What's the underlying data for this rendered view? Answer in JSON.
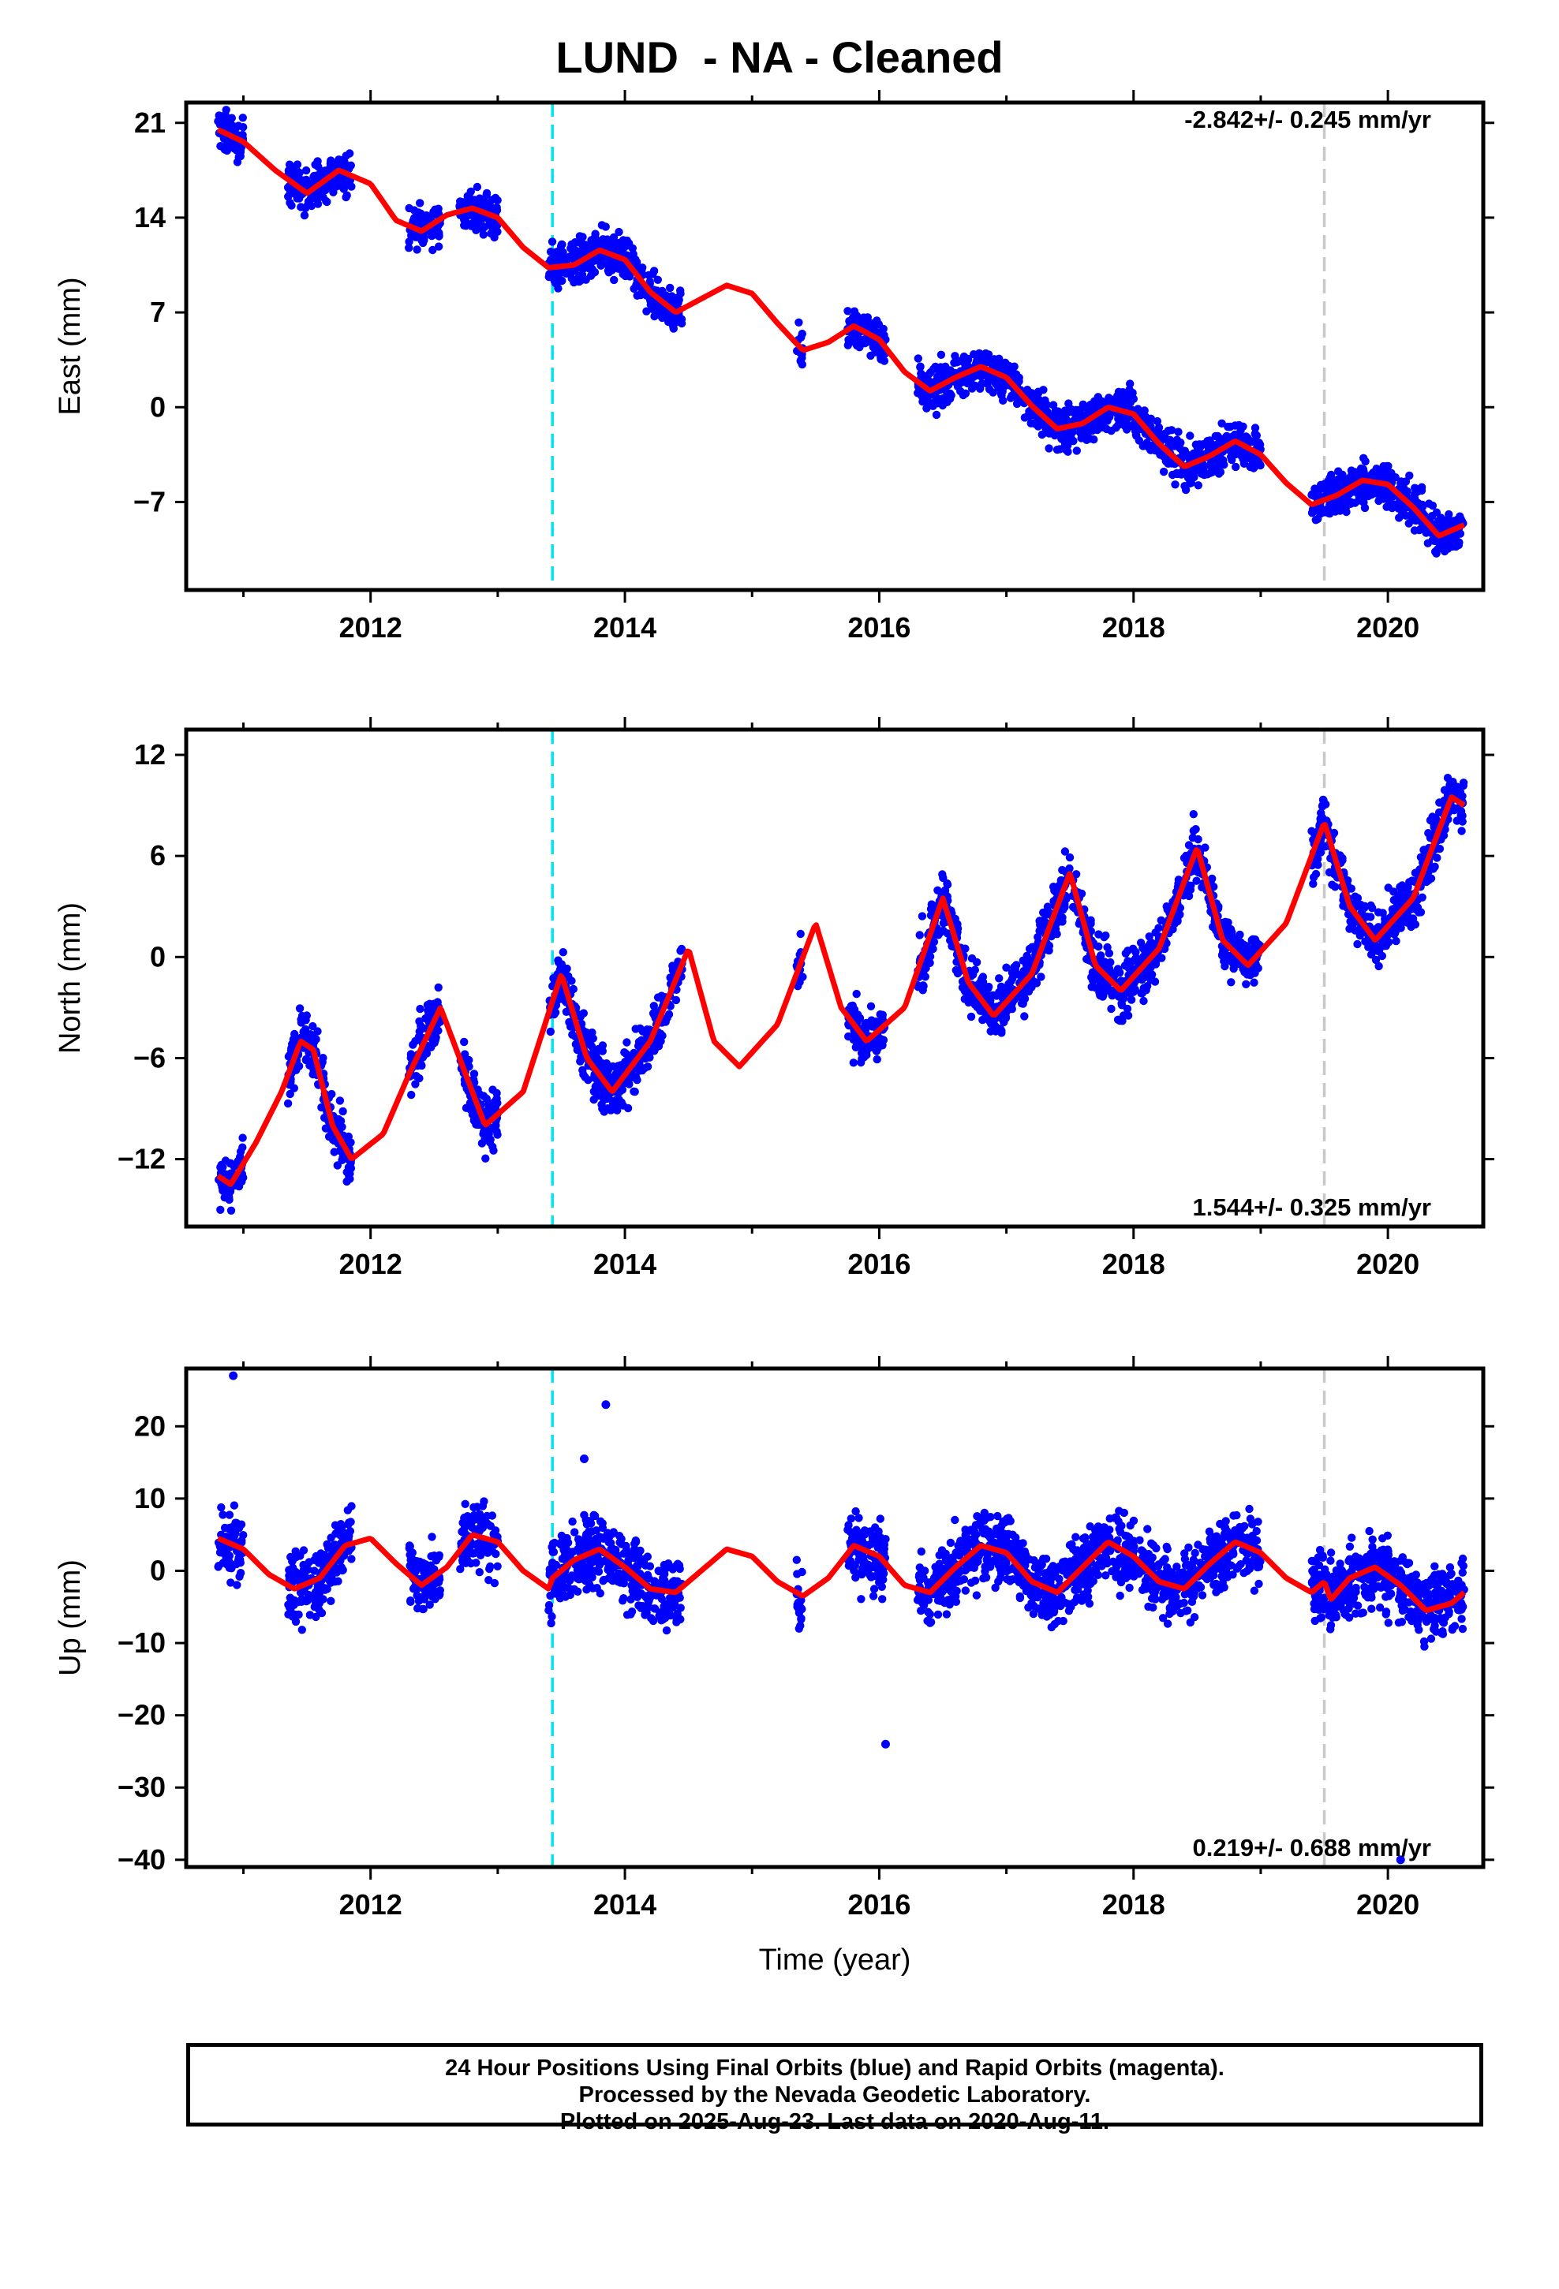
{
  "title": "LUND  - NA - Cleaned",
  "footer": {
    "line1": "24 Hour Positions Using Final Orbits (blue) and Rapid Orbits (magenta).",
    "line2": "Processed by the Nevada Geodetic Laboratory.",
    "line3": "Plotted on 2025-Aug-23. Last data on 2020-Aug-11."
  },
  "colors": {
    "final_orbit_points": "#0000ff",
    "rapid_orbit_points": "#ff00ff",
    "model_fit": "#ff0000",
    "equipment_change_line": "#00e5ee",
    "event_line": "#c8c8c8",
    "frame": "#000000"
  },
  "chart_data": [
    {
      "type": "scatter",
      "component": "East",
      "ylabel": "East (mm)",
      "xlabel": "",
      "xlim": [
        2010.55,
        2020.75
      ],
      "ylim": [
        -13.5,
        22.5
      ],
      "y_ticks": [
        -7,
        0,
        7,
        14,
        21
      ],
      "x_ticks": [
        2012,
        2014,
        2016,
        2018,
        2020
      ],
      "rate_text": "-2.842+/- 0.245 mm/yr",
      "rate_position": "top-right",
      "vertical_lines": [
        {
          "x": 2013.43,
          "style": "dashed",
          "color": "cyan"
        },
        {
          "x": 2019.5,
          "style": "dashed",
          "color": "gray"
        }
      ],
      "series": [
        {
          "role": "daily positions",
          "segments": [
            [
              2010.8,
              2011.0
            ],
            [
              2011.35,
              2011.85
            ],
            [
              2012.3,
              2012.55
            ],
            [
              2012.7,
              2013.0
            ],
            [
              2013.4,
              2014.45
            ],
            [
              2015.35,
              2015.4
            ],
            [
              2015.75,
              2016.05
            ],
            [
              2016.3,
              2016.95
            ],
            [
              2016.95,
              2019.0
            ],
            [
              2019.4,
              2020.6
            ]
          ]
        },
        {
          "role": "model fit",
          "x": [
            2010.8,
            2011.0,
            2011.25,
            2011.5,
            2011.75,
            2012.0,
            2012.2,
            2012.4,
            2012.6,
            2012.8,
            2013.0,
            2013.2,
            2013.4,
            2013.6,
            2013.8,
            2014.0,
            2014.2,
            2014.4,
            2014.6,
            2014.8,
            2015.0,
            2015.2,
            2015.4,
            2015.6,
            2015.8,
            2016.0,
            2016.2,
            2016.4,
            2016.6,
            2016.8,
            2017.0,
            2017.2,
            2017.4,
            2017.6,
            2017.8,
            2018.0,
            2018.2,
            2018.4,
            2018.6,
            2018.8,
            2019.0,
            2019.2,
            2019.4,
            2019.6,
            2019.8,
            2020.0,
            2020.2,
            2020.4,
            2020.6
          ],
          "y": [
            20.5,
            19.6,
            17.5,
            15.8,
            17.5,
            16.5,
            13.8,
            13.0,
            14.2,
            14.7,
            14.0,
            11.8,
            10.3,
            10.5,
            11.6,
            10.9,
            8.5,
            7.0,
            8.0,
            9.0,
            8.4,
            6.2,
            4.2,
            4.8,
            6.0,
            5.0,
            2.6,
            1.2,
            2.2,
            3.0,
            2.2,
            0.1,
            -1.6,
            -1.2,
            0.0,
            -0.5,
            -2.7,
            -4.4,
            -3.6,
            -2.5,
            -3.5,
            -5.6,
            -7.2,
            -6.5,
            -5.4,
            -5.7,
            -7.4,
            -9.5,
            -8.7
          ]
        }
      ]
    },
    {
      "type": "scatter",
      "component": "North",
      "ylabel": "North (mm)",
      "xlabel": "",
      "xlim": [
        2010.55,
        2020.75
      ],
      "ylim": [
        -16,
        13.5
      ],
      "y_ticks": [
        -12,
        -6,
        0,
        6,
        12
      ],
      "x_ticks": [
        2012,
        2014,
        2016,
        2018,
        2020
      ],
      "rate_text": "1.544+/- 0.325 mm/yr",
      "rate_position": "bottom-right",
      "vertical_lines": [
        {
          "x": 2013.43,
          "style": "dashed",
          "color": "cyan"
        },
        {
          "x": 2019.5,
          "style": "dashed",
          "color": "gray"
        }
      ],
      "series": [
        {
          "role": "daily positions",
          "segments": [
            [
              2010.8,
              2011.0
            ],
            [
              2011.35,
              2011.85
            ],
            [
              2012.3,
              2012.55
            ],
            [
              2012.7,
              2013.0
            ],
            [
              2013.4,
              2014.45
            ],
            [
              2015.35,
              2015.4
            ],
            [
              2015.75,
              2016.05
            ],
            [
              2016.3,
              2016.95
            ],
            [
              2016.95,
              2019.0
            ],
            [
              2019.4,
              2020.6
            ]
          ]
        },
        {
          "role": "model fit",
          "x": [
            2010.8,
            2010.9,
            2011.1,
            2011.3,
            2011.45,
            2011.55,
            2011.7,
            2011.85,
            2012.1,
            2012.3,
            2012.55,
            2012.75,
            2012.9,
            2013.2,
            2013.5,
            2013.7,
            2013.9,
            2014.2,
            2014.5,
            2014.7,
            2014.9,
            2015.2,
            2015.5,
            2015.7,
            2015.9,
            2016.2,
            2016.5,
            2016.7,
            2016.9,
            2017.2,
            2017.5,
            2017.7,
            2017.9,
            2018.2,
            2018.5,
            2018.7,
            2018.9,
            2019.2,
            2019.5,
            2019.7,
            2019.9,
            2020.2,
            2020.5,
            2020.6
          ],
          "y": [
            -13.0,
            -13.5,
            -11.0,
            -8.0,
            -5.0,
            -5.5,
            -10.0,
            -12.0,
            -10.5,
            -7.0,
            -3.0,
            -7.0,
            -10.0,
            -8.0,
            -1.0,
            -6.0,
            -8.0,
            -5.0,
            0.5,
            -5.0,
            -6.5,
            -4.0,
            2.0,
            -3.0,
            -5.0,
            -3.0,
            3.5,
            -1.5,
            -3.5,
            -1.0,
            5.0,
            -0.5,
            -2.0,
            0.5,
            6.5,
            1.0,
            -0.5,
            2.0,
            8.0,
            3.0,
            1.0,
            3.5,
            9.5,
            9.0
          ]
        }
      ]
    },
    {
      "type": "scatter",
      "component": "Up",
      "ylabel": "Up (mm)",
      "xlabel": "Time (year)",
      "xlim": [
        2010.55,
        2020.75
      ],
      "ylim": [
        -41,
        28
      ],
      "y_ticks": [
        -40,
        -30,
        -20,
        -10,
        0,
        10,
        20
      ],
      "x_ticks": [
        2012,
        2014,
        2016,
        2018,
        2020
      ],
      "rate_text": "0.219+/- 0.688 mm/yr",
      "rate_position": "bottom-right",
      "vertical_lines": [
        {
          "x": 2013.43,
          "style": "dashed",
          "color": "cyan"
        },
        {
          "x": 2019.5,
          "style": "dashed",
          "color": "gray"
        }
      ],
      "series": [
        {
          "role": "daily positions",
          "segments": [
            [
              2010.8,
              2011.0
            ],
            [
              2011.35,
              2011.85
            ],
            [
              2012.3,
              2012.55
            ],
            [
              2012.7,
              2013.0
            ],
            [
              2013.4,
              2014.45
            ],
            [
              2015.35,
              2015.4
            ],
            [
              2015.75,
              2016.05
            ],
            [
              2016.3,
              2016.95
            ],
            [
              2016.95,
              2019.0
            ],
            [
              2019.4,
              2020.6
            ]
          ]
        },
        {
          "role": "outliers",
          "x": [
            2010.92,
            2013.85,
            2013.68,
            2016.05,
            2020.1
          ],
          "y": [
            27.0,
            23.0,
            15.5,
            -24.0,
            -40.0
          ]
        },
        {
          "role": "model fit",
          "x": [
            2010.8,
            2011.0,
            2011.2,
            2011.4,
            2011.6,
            2011.8,
            2012.0,
            2012.2,
            2012.4,
            2012.6,
            2012.8,
            2013.0,
            2013.2,
            2013.4,
            2013.43,
            2013.6,
            2013.8,
            2014.0,
            2014.2,
            2014.4,
            2014.6,
            2014.8,
            2015.0,
            2015.2,
            2015.4,
            2015.6,
            2015.8,
            2016.0,
            2016.2,
            2016.4,
            2016.6,
            2016.8,
            2017.0,
            2017.2,
            2017.4,
            2017.6,
            2017.8,
            2018.0,
            2018.2,
            2018.4,
            2018.6,
            2018.8,
            2019.0,
            2019.2,
            2019.4,
            2019.5,
            2019.55,
            2019.7,
            2019.9,
            2020.1,
            2020.3,
            2020.5,
            2020.6
          ],
          "y": [
            4.5,
            3.0,
            -0.5,
            -2.5,
            -1.0,
            3.5,
            4.5,
            1.0,
            -2.0,
            0.5,
            5.0,
            4.0,
            0.0,
            -2.5,
            -1.0,
            1.5,
            3.0,
            0.5,
            -2.5,
            -3.0,
            0.0,
            3.0,
            2.0,
            -1.5,
            -3.5,
            -1.0,
            3.5,
            2.0,
            -2.0,
            -3.0,
            0.5,
            3.5,
            2.5,
            -1.5,
            -3.0,
            0.5,
            4.0,
            2.0,
            -1.5,
            -2.5,
            1.0,
            4.0,
            2.5,
            -1.0,
            -3.0,
            -1.5,
            -4.0,
            -1.0,
            0.5,
            -2.0,
            -5.5,
            -4.5,
            -3.0
          ]
        }
      ]
    }
  ]
}
